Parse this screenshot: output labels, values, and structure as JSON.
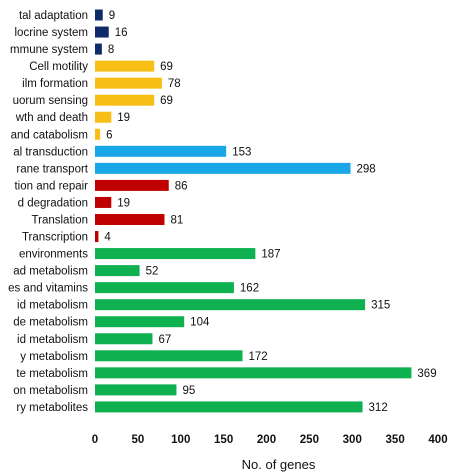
{
  "chart_data": {
    "type": "bar",
    "orientation": "horizontal",
    "title": "",
    "xlabel": "No. of genes",
    "ylabel": "",
    "xlim": [
      0,
      400
    ],
    "xticks": [
      "0",
      "50",
      "100",
      "150",
      "200",
      "250",
      "300",
      "350",
      "400"
    ],
    "grid": false,
    "legend": "none",
    "categories": [
      "tal adaptation",
      "locrine system",
      "mmune system",
      "Cell motility",
      "ilm formation",
      "uorum sensing",
      "wth and death",
      "and catabolism",
      "al transduction",
      "rane transport",
      "tion and repair",
      "d degradation",
      "Translation",
      "Transcription",
      "environments",
      "ad metabolism",
      "es and vitamins",
      "id metabolism",
      "de metabolism",
      "id metabolism",
      "y metabolism",
      "te metabolism",
      "on metabolism",
      "ry metabolites"
    ],
    "values": [
      9,
      16,
      8,
      69,
      78,
      69,
      19,
      6,
      153,
      298,
      86,
      19,
      81,
      4,
      187,
      52,
      162,
      315,
      104,
      67,
      172,
      369,
      95,
      312
    ],
    "value_labels": [
      "9",
      "16",
      "8",
      "69",
      "78",
      "69",
      "19",
      "6",
      "153",
      "298",
      "86",
      "19",
      "81",
      "4",
      "187",
      "52",
      "162",
      "315",
      "104",
      "67",
      "172",
      "369",
      "95",
      "312"
    ],
    "bar_colors": [
      "#0d2a6b",
      "#0d2a6b",
      "#0d2a6b",
      "#f7be16",
      "#f7be16",
      "#f7be16",
      "#f7be16",
      "#f7be16",
      "#1aa7e8",
      "#1aa7e8",
      "#c00000",
      "#c00000",
      "#c00000",
      "#c00000",
      "#0fb050",
      "#0fb050",
      "#0fb050",
      "#0fb050",
      "#0fb050",
      "#0fb050",
      "#0fb050",
      "#0fb050",
      "#0fb050",
      "#0fb050"
    ]
  }
}
